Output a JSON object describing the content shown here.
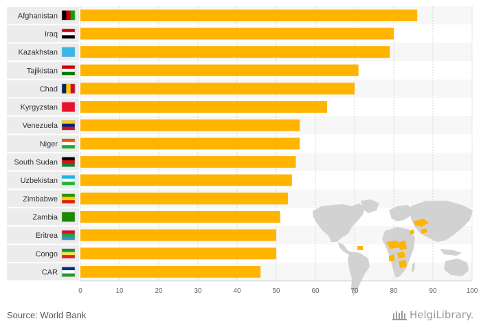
{
  "chart_data": {
    "type": "bar",
    "orientation": "horizontal",
    "title": "",
    "xlabel": "",
    "ylabel": "",
    "xlim": [
      0,
      100
    ],
    "ticks": [
      "0",
      "10",
      "20",
      "30",
      "40",
      "50",
      "60",
      "70",
      "80",
      "90",
      "100"
    ],
    "categories": [
      "Afghanistan",
      "Iraq",
      "Kazakhstan",
      "Tajikistan",
      "Chad",
      "Kyrgyzstan",
      "Venezuela",
      "Niger",
      "South Sudan",
      "Uzbekistan",
      "Zimbabwe",
      "Zambia",
      "Eritrea",
      "Congo",
      "CAR"
    ],
    "values": [
      86,
      80,
      79,
      71,
      70,
      63,
      56,
      56,
      55,
      54,
      53,
      51,
      50,
      50,
      46
    ],
    "bar_color": "#FFB400",
    "grid": true
  },
  "footer": {
    "source": "Source: World Bank",
    "brand_name": "HelgiLibrary."
  },
  "colors": {
    "bar": "#FFB400",
    "label_band": "#ececec",
    "map_land": "#d2d2d2",
    "map_highlight": "#FFB400"
  }
}
